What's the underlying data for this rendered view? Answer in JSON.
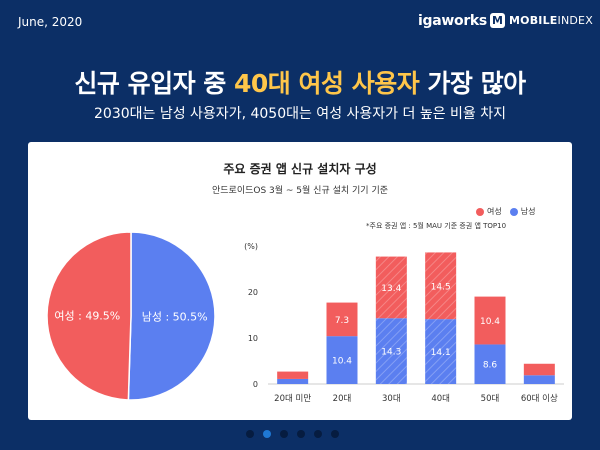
{
  "header": {
    "date": "June, 2020",
    "brand_igaworks": "igaworks",
    "brand_mobileindex_logo": "M",
    "brand_mobileindex_bold": "MOBILE",
    "brand_mobileindex_light": "INDEX"
  },
  "headline": {
    "part1": "신규 유입자 중 ",
    "highlight": "40대 여성 사용자",
    "part2": " 가장 많아"
  },
  "subheadline": "2030대는 남성 사용자가, 4050대는 여성 사용자가 더 높은 비율 차지",
  "colors": {
    "female": "#f25d5d",
    "male": "#5b7ff0",
    "background": "#0c2f66",
    "highlight": "#ffc64a"
  },
  "pagination": {
    "count": 6,
    "active_index": 1
  },
  "chart_data": [
    {
      "type": "pie",
      "title": "주요 증권 앱 신규 설치자 구성",
      "subtitle": "안드로이드OS 3월 ~ 5월 신규 설치 기기 기준",
      "slices": [
        {
          "name": "여성",
          "label": "여성 : 49.5%",
          "value": 49.5,
          "color": "#f25d5d"
        },
        {
          "name": "남성",
          "label": "남성 : 50.5%",
          "value": 50.5,
          "color": "#5b7ff0"
        }
      ]
    },
    {
      "type": "bar",
      "stacked": true,
      "ylabel": "(%)",
      "ylim": [
        0,
        30
      ],
      "yticks": [
        0,
        10,
        20
      ],
      "categories": [
        "20대 미만",
        "20대",
        "30대",
        "40대",
        "50대",
        "60대 이상"
      ],
      "highlight_categories": [
        2,
        3
      ],
      "series": [
        {
          "name": "남성",
          "color": "#5b7ff0",
          "values": [
            1.1,
            10.4,
            14.3,
            14.1,
            8.6,
            1.9
          ],
          "labels": [
            "",
            "10.4",
            "14.3",
            "14.1",
            "8.6",
            ""
          ]
        },
        {
          "name": "여성",
          "color": "#f25d5d",
          "values": [
            1.6,
            7.3,
            13.4,
            14.5,
            10.4,
            2.5
          ],
          "labels": [
            "",
            "7.3",
            "13.4",
            "14.5",
            "10.4",
            ""
          ]
        }
      ],
      "legend": [
        "여성",
        "남성"
      ],
      "legend_position": "top-right",
      "footnote": "*주요 증권 앱 : 5월 MAU 기준 증권 앱 TOP10"
    }
  ]
}
